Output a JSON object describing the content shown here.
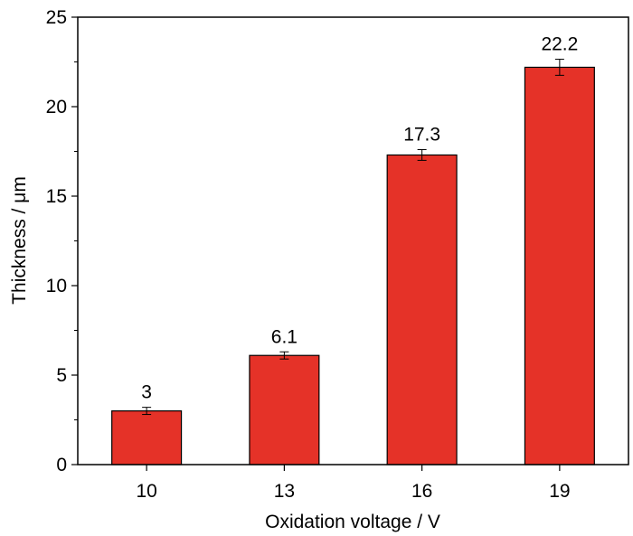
{
  "chart_data": {
    "type": "bar",
    "categories": [
      "10",
      "13",
      "16",
      "19"
    ],
    "values": [
      3,
      6.1,
      17.3,
      22.2
    ],
    "value_labels": [
      "3",
      "6.1",
      "17.3",
      "22.2"
    ],
    "error": [
      0.2,
      0.2,
      0.3,
      0.45
    ],
    "xlabel": "Oxidation voltage / V",
    "ylabel": "Thickness / μm",
    "ylim": [
      0,
      25
    ],
    "yticks": [
      0,
      5,
      10,
      15,
      20,
      25
    ],
    "ytick_labels": [
      "0",
      "5",
      "10",
      "15",
      "20",
      "25"
    ],
    "grid": false,
    "colors": {
      "bar": "#e53228",
      "stroke": "#000000"
    }
  }
}
